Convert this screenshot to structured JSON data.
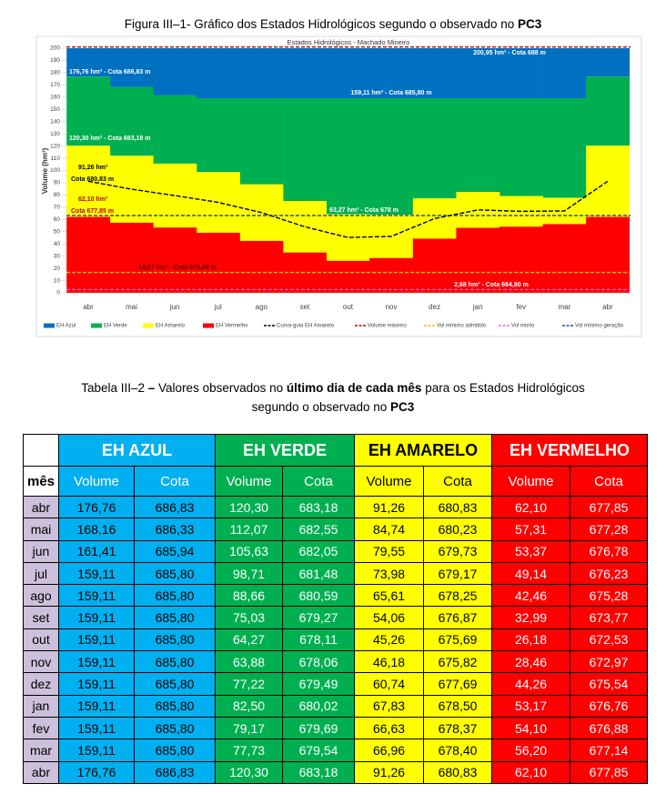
{
  "figure_caption": {
    "text": "Figura III–1- Gráfico dos Estados Hidrológicos segundo o observado no ",
    "bold": "PC3"
  },
  "chart_data": {
    "type": "step-area",
    "title": "Estados Hidrológicos - Machado Mineiro",
    "y_label": "Volume (hm³)",
    "categories": [
      "abr",
      "mai",
      "jun",
      "jul",
      "ago",
      "set",
      "out",
      "nov",
      "dez",
      "jan",
      "fev",
      "mar",
      "abr"
    ],
    "ylim": [
      0,
      200
    ],
    "yticks": [
      0,
      10,
      20,
      30,
      40,
      50,
      60,
      70,
      80,
      90,
      100,
      110,
      120,
      130,
      140,
      150,
      160,
      170,
      180,
      190,
      200
    ],
    "series": [
      {
        "name": "EH Azul",
        "color": "#0070c0",
        "values": [
          176.76,
          168.16,
          161.41,
          159.11,
          159.11,
          159.11,
          159.11,
          159.11,
          159.11,
          159.11,
          159.11,
          159.11,
          176.76
        ]
      },
      {
        "name": "EH Verde",
        "color": "#00b050",
        "values": [
          120.3,
          112.07,
          105.63,
          98.71,
          88.66,
          75.03,
          64.27,
          63.88,
          77.22,
          82.5,
          79.17,
          77.73,
          120.3
        ]
      },
      {
        "name": "EH Amarelo",
        "color": "#ffff00",
        "values": [
          62.1,
          57.31,
          53.37,
          49.14,
          42.46,
          32.99,
          26.18,
          28.46,
          44.26,
          53.17,
          54.1,
          56.2,
          62.1
        ]
      },
      {
        "name": "EH Vermelho",
        "color": "#ff0000"
      }
    ],
    "guide": {
      "name": "Curva-guia EH Amarelo",
      "color": "#000000",
      "values": [
        91.26,
        84.74,
        79.55,
        73.98,
        65.61,
        54.06,
        45.26,
        46.18,
        60.74,
        67.83,
        66.63,
        66.96,
        91.26
      ]
    },
    "reference_lines": [
      {
        "name": "Volume máximo",
        "color": "#c00000",
        "value": 200.95
      },
      {
        "name": "Vol mínimo admitido",
        "color": "#ffc000",
        "value": 16.67
      },
      {
        "name": "Vol morto",
        "color": "#ff66cc",
        "value": 2.68
      },
      {
        "name": "Vol mínimo geração",
        "color": "#1f3fbf",
        "value": 63.27
      }
    ],
    "annotations": [
      "200,95 hm³ - Cota  688 m",
      "176,76 hm³ - Cota 686,83 m",
      "159,11 hm³ - Cota 685,80 m",
      "120,30 hm³ - Cota 683,18 m",
      "91,26 hm³",
      "Cota 680,83 m",
      "62,10 hm³",
      "Cota 677,85 m",
      "63,27 hm³ - Cota 678 m",
      "16,67 hm³ - Cota 670,46 m",
      "2,68 hm³ - Cota 664,80 m"
    ]
  },
  "table_caption": {
    "line1": [
      "Tabela III–2 ",
      "–",
      " Valores observados no ",
      "último dia de cada mês",
      " para os Estados Hidrológicos"
    ],
    "line2": [
      "segundo o observado no ",
      "PC3"
    ]
  },
  "table": {
    "groups": [
      "EH AZUL",
      "EH VERDE",
      "EH AMARELO",
      "EH VERMELHO"
    ],
    "columns": [
      "mês",
      "Volume",
      "Cota",
      "Volume",
      "Cota",
      "Volume",
      "Cota",
      "Volume",
      "Cota"
    ],
    "rows": [
      [
        "abr",
        "176,76",
        "686,83",
        "120,30",
        "683,18",
        "91,26",
        "680,83",
        "62,10",
        "677,85"
      ],
      [
        "mai",
        "168,16",
        "686,33",
        "112,07",
        "682,55",
        "84,74",
        "680,23",
        "57,31",
        "677,28"
      ],
      [
        "jun",
        "161,41",
        "685,94",
        "105,63",
        "682,05",
        "79,55",
        "679,73",
        "53,37",
        "676,78"
      ],
      [
        "jul",
        "159,11",
        "685,80",
        "98,71",
        "681,48",
        "73,98",
        "679,17",
        "49,14",
        "676,23"
      ],
      [
        "ago",
        "159,11",
        "685,80",
        "88,66",
        "680,59",
        "65,61",
        "678,25",
        "42,46",
        "675,28"
      ],
      [
        "set",
        "159,11",
        "685,80",
        "75,03",
        "679,27",
        "54,06",
        "676,87",
        "32,99",
        "673,77"
      ],
      [
        "out",
        "159,11",
        "685,80",
        "64,27",
        "678,11",
        "45,26",
        "675,69",
        "26,18",
        "672,53"
      ],
      [
        "nov",
        "159,11",
        "685,80",
        "63,88",
        "678,06",
        "46,18",
        "675,82",
        "28,46",
        "672,97"
      ],
      [
        "dez",
        "159,11",
        "685,80",
        "77,22",
        "679,49",
        "60,74",
        "677,69",
        "44,26",
        "675,54"
      ],
      [
        "jan",
        "159,11",
        "685,80",
        "82,50",
        "680,02",
        "67,83",
        "678,50",
        "53,17",
        "676,76"
      ],
      [
        "fev",
        "159,11",
        "685,80",
        "79,17",
        "679,69",
        "66,63",
        "678,37",
        "54,10",
        "676,88"
      ],
      [
        "mar",
        "159,11",
        "685,80",
        "77,73",
        "679,54",
        "66,96",
        "678,40",
        "56,20",
        "677,14"
      ],
      [
        "abr",
        "176,76",
        "686,83",
        "120,30",
        "683,18",
        "91,26",
        "680,83",
        "62,10",
        "677,85"
      ]
    ]
  }
}
